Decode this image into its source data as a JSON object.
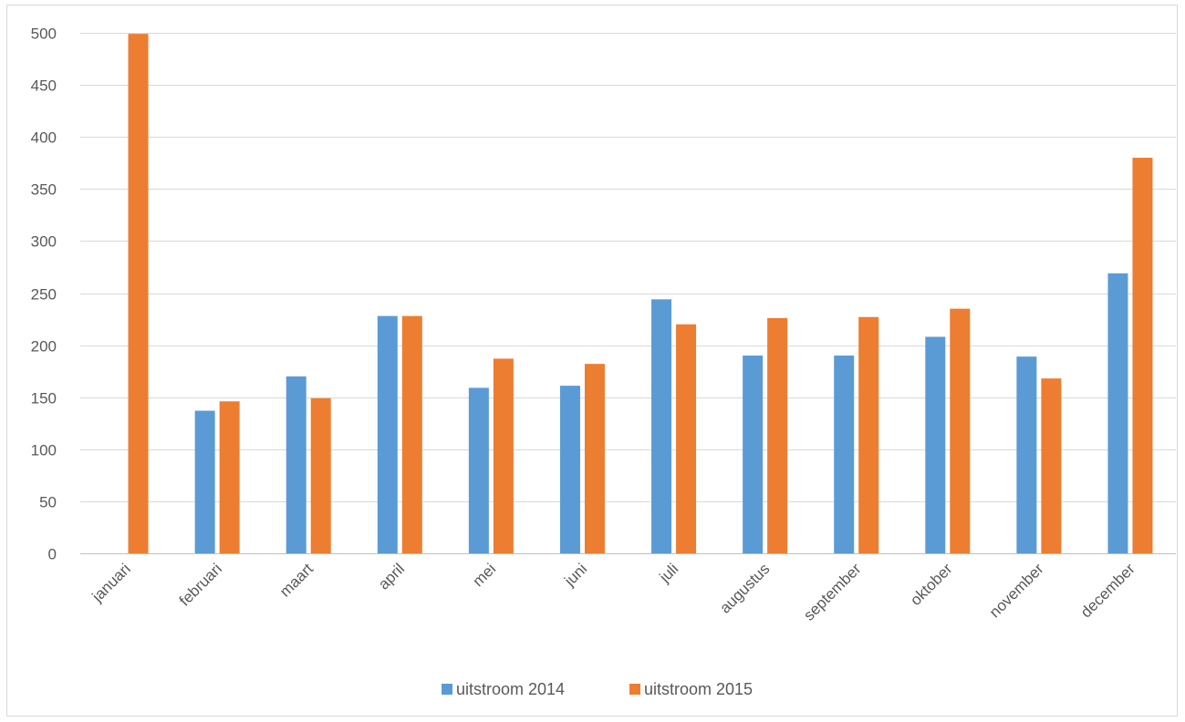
{
  "chart_data": {
    "type": "bar",
    "categories": [
      "januari",
      "februari",
      "maart",
      "april",
      "mei",
      "juni",
      "juli",
      "augustus",
      "september",
      "oktober",
      "november",
      "december"
    ],
    "series": [
      {
        "name": "uitstroom 2014",
        "color": "#5b9bd5",
        "values": [
          0,
          137,
          170,
          228,
          159,
          161,
          244,
          190,
          190,
          208,
          189,
          269
        ]
      },
      {
        "name": "uitstroom 2015",
        "color": "#ed7d31",
        "values": [
          499,
          146,
          149,
          228,
          187,
          182,
          220,
          226,
          227,
          235,
          168,
          380
        ]
      }
    ],
    "ylim": [
      0,
      500
    ],
    "yticks": [
      0,
      50,
      100,
      150,
      200,
      250,
      300,
      350,
      400,
      450,
      500
    ],
    "grid": true,
    "legend": "bottom",
    "gridColor": "#d9d9d9",
    "axisColor": "#bfbfbf",
    "textColor": "#595959"
  }
}
